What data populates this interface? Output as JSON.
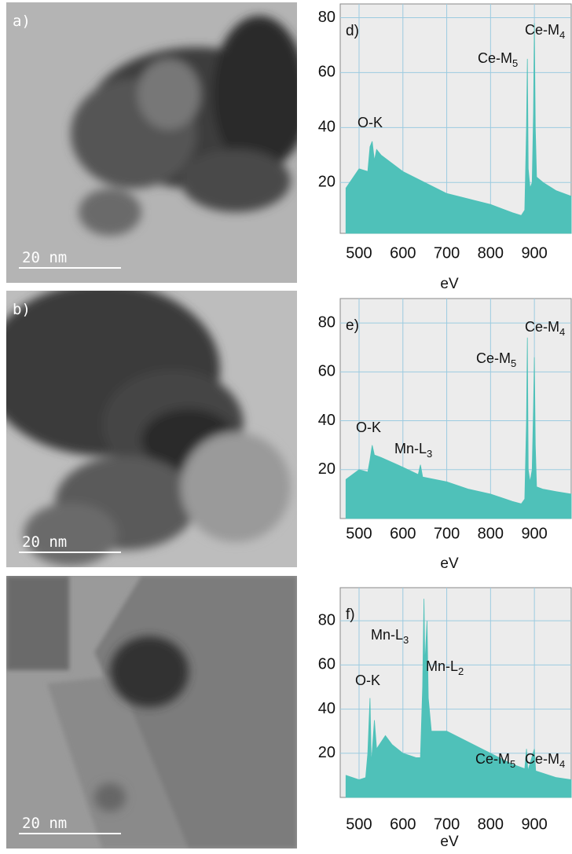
{
  "images": [
    {
      "label": "a)",
      "scale_bar": "20 nm"
    },
    {
      "label": "b)",
      "scale_bar": "20 nm"
    },
    {
      "scale_bar": "20 nm"
    }
  ],
  "chart_data": [
    {
      "type": "area",
      "panel": "d)",
      "xlabel": "eV",
      "color": "#4fc1b9",
      "grid": true,
      "xlim": [
        457,
        984
      ],
      "ylim": [
        1.5,
        85
      ],
      "xticks": [
        500,
        600,
        700,
        800,
        900
      ],
      "yticks": [
        20,
        40,
        60,
        80
      ],
      "x": [
        470,
        500,
        520,
        525,
        530,
        535,
        540,
        550,
        575,
        600,
        650,
        700,
        750,
        800,
        850,
        870,
        878,
        882,
        884,
        886,
        890,
        895,
        898,
        900,
        902,
        905,
        920,
        950,
        984
      ],
      "values": [
        18,
        25,
        24,
        33,
        35,
        28,
        32,
        30,
        27,
        24,
        20,
        16,
        14,
        12,
        9,
        8,
        10,
        40,
        65,
        25,
        18,
        20,
        45,
        78,
        40,
        22,
        20,
        17,
        15
      ],
      "annotations": [
        {
          "text": "O-K"
        },
        {
          "text": "Ce-M",
          "sub": "5"
        },
        {
          "text": "Ce-M",
          "sub": "4"
        }
      ]
    },
    {
      "type": "area",
      "panel": "e)",
      "xlabel": "eV",
      "color": "#4fc1b9",
      "grid": true,
      "xlim": [
        457,
        984
      ],
      "ylim": [
        0,
        90
      ],
      "xticks": [
        500,
        600,
        700,
        800,
        900
      ],
      "yticks": [
        20,
        40,
        60,
        80
      ],
      "x": [
        470,
        500,
        520,
        525,
        530,
        535,
        550,
        600,
        635,
        640,
        645,
        700,
        750,
        800,
        850,
        870,
        878,
        882,
        884,
        886,
        890,
        895,
        898,
        900,
        902,
        905,
        920,
        950,
        984
      ],
      "values": [
        16,
        20,
        19,
        24,
        30,
        26,
        25,
        21,
        18,
        22,
        17,
        15,
        12,
        10,
        7,
        6,
        8,
        40,
        74,
        20,
        15,
        20,
        45,
        66,
        30,
        13,
        12,
        11,
        10
      ],
      "annotations": [
        {
          "text": "Ce-M",
          "sub": "4"
        },
        {
          "text": "Ce-M",
          "sub": "5"
        },
        {
          "text": "O-K"
        },
        {
          "text": "Mn-L",
          "sub": "3"
        }
      ]
    },
    {
      "type": "area",
      "panel": "f)",
      "xlabel": "eV",
      "color": "#4fc1b9",
      "grid": true,
      "xlim": [
        457,
        984
      ],
      "ylim": [
        0,
        95
      ],
      "xticks": [
        500,
        600,
        700,
        800,
        900
      ],
      "yticks": [
        20,
        40,
        60,
        80
      ],
      "x": [
        470,
        500,
        515,
        520,
        525,
        528,
        535,
        540,
        550,
        560,
        575,
        600,
        630,
        640,
        645,
        648,
        650,
        655,
        658,
        665,
        700,
        750,
        800,
        850,
        878,
        882,
        885,
        900,
        903,
        950,
        984
      ],
      "values": [
        10,
        8,
        9,
        20,
        45,
        15,
        35,
        22,
        25,
        28,
        24,
        20,
        18,
        18,
        50,
        90,
        60,
        80,
        45,
        30,
        30,
        25,
        20,
        15,
        13,
        22,
        12,
        22,
        12,
        9,
        8
      ],
      "annotations": [
        {
          "text": "Mn-L",
          "sub": "3"
        },
        {
          "text": "Mn-L",
          "sub": "2"
        },
        {
          "text": "O-K"
        },
        {
          "text": "Ce-M",
          "sub": "5"
        },
        {
          "text": "Ce-M",
          "sub": "4"
        }
      ]
    }
  ]
}
